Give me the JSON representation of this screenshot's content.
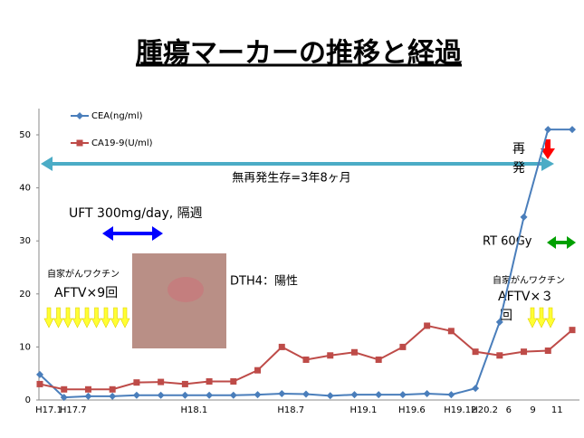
{
  "chart_data": {
    "type": "line",
    "title": "腫瘍マーカーの推移と経過",
    "categories": [
      "H17.1",
      "H17.7",
      null,
      null,
      null,
      null,
      "H18.1",
      null,
      null,
      null,
      "H18.7",
      null,
      null,
      "H19.1",
      null,
      "H19.6",
      null,
      "H19.12",
      "H20.2",
      "6",
      "9",
      "11",
      null
    ],
    "series": [
      {
        "name": "CEA(ng/ml)",
        "color": "#4a7ebb",
        "marker": "diamond",
        "values": [
          4.8,
          0.5,
          0.7,
          0.7,
          0.9,
          0.9,
          0.9,
          0.9,
          0.9,
          1.0,
          1.2,
          1.1,
          0.8,
          1.0,
          1.0,
          1.0,
          1.2,
          1.0,
          2.2,
          14.7,
          34.5,
          51,
          51
        ]
      },
      {
        "name": "CA19-9(U/ml)",
        "color": "#be4b48",
        "marker": "square",
        "values": [
          3.0,
          2.0,
          2.0,
          2.0,
          3.3,
          3.4,
          3.0,
          3.5,
          3.5,
          5.6,
          10,
          7.6,
          8.4,
          9.0,
          7.6,
          10,
          14,
          13,
          9.1,
          8.4,
          9.1,
          9.3,
          13.2
        ]
      }
    ],
    "ylim": [
      0,
      55
    ],
    "yticks": [
      0,
      10,
      20,
      30,
      40,
      50
    ],
    "grid": false,
    "annotations": [
      "無再発生存=3年8ヶ月",
      "UFT 300mg/day, 隔週",
      "自家がんワクチン",
      "AFTV×9回",
      "DTH4：陽性",
      "RT 60Gy",
      "自家がんワクチン",
      "AFTV×３",
      "回",
      "再",
      "発"
    ]
  }
}
